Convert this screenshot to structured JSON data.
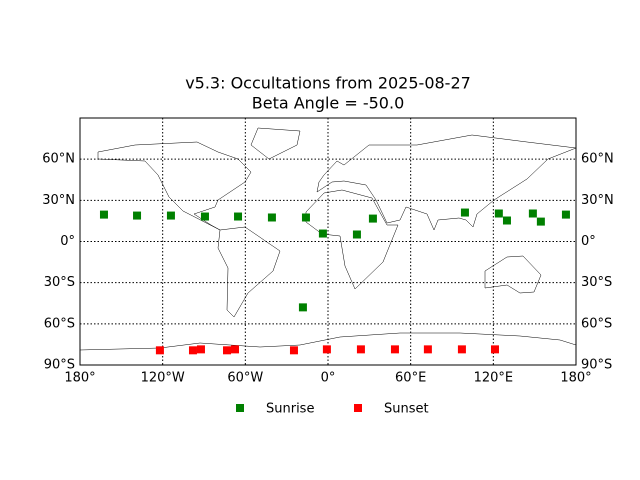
{
  "chart_data": {
    "type": "scatter",
    "title": "v5.3: Occultations from 2025-08-27",
    "subtitle": "Beta Angle = -50.0",
    "xlim": [
      -180,
      180
    ],
    "ylim": [
      -90,
      90
    ],
    "xticks": [
      {
        "value": -180,
        "label": "180°"
      },
      {
        "value": -120,
        "label": "120°W"
      },
      {
        "value": -60,
        "label": "60°W"
      },
      {
        "value": 0,
        "label": "0°"
      },
      {
        "value": 60,
        "label": "60°E"
      },
      {
        "value": 120,
        "label": "120°E"
      },
      {
        "value": 180,
        "label": "180°"
      }
    ],
    "yticks": [
      {
        "value": -90,
        "label": "90°S"
      },
      {
        "value": -60,
        "label": "60°S"
      },
      {
        "value": -30,
        "label": "30°S"
      },
      {
        "value": 0,
        "label": "0°"
      },
      {
        "value": 30,
        "label": "30°N"
      },
      {
        "value": 60,
        "label": "60°N"
      }
    ],
    "grid": true,
    "series": [
      {
        "name": "Sunrise",
        "color": "#008000",
        "x": [
          -162.6,
          -138.6,
          -114,
          -89.3,
          -65.3,
          -40.7,
          -16,
          -3.7,
          -18.2,
          21,
          32.6,
          99.4,
          124,
          129.9,
          148.7,
          154.5,
          172.7
        ],
        "y": [
          19.6,
          18.9,
          18.9,
          18.2,
          18.2,
          17.5,
          17.5,
          5.8,
          -48,
          5.1,
          16.7,
          21.1,
          20.4,
          15.3,
          20.4,
          14.5,
          19.6
        ]
      },
      {
        "name": "Sunset",
        "color": "#ff0000",
        "x": [
          -122,
          -98,
          -92.2,
          -73.3,
          -67.5,
          -24.7,
          -0.8,
          23.9,
          48.6,
          72.5,
          97.2,
          121.2
        ],
        "y": [
          -79.3,
          -79.3,
          -78.6,
          -79.3,
          -78.6,
          -79.3,
          -78.6,
          -78.6,
          -78.6,
          -78.6,
          -78.6,
          -78.6
        ]
      }
    ]
  }
}
